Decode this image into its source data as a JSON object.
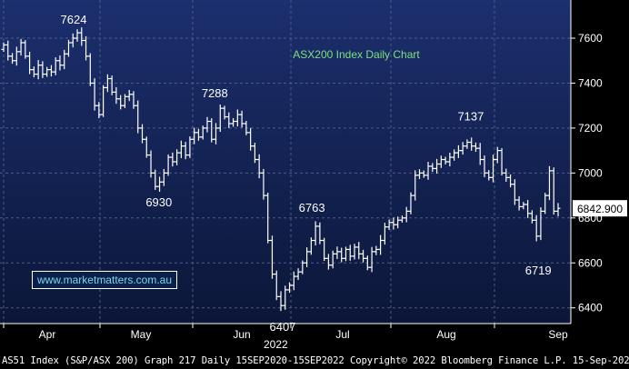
{
  "chart_data": {
    "type": "ohlc",
    "title": "ASX200 Index Daily Chart",
    "xlabel": "2022",
    "ylabel": "",
    "ylim": [
      6330,
      7770
    ],
    "yticks": [
      6400,
      6600,
      6800,
      7000,
      7200,
      7400,
      7600
    ],
    "month_labels": [
      "Apr",
      "May",
      "Jun",
      "Jul",
      "Aug",
      "Sep"
    ],
    "last_price_label": "6842.900",
    "last_price": 6842.9,
    "series": [
      {
        "values": [
          7570,
          7520,
          7500,
          7540,
          7580,
          7520,
          7460,
          7440,
          7480,
          7440,
          7460,
          7450,
          7500,
          7480,
          7530,
          7580,
          7600,
          7624,
          7590,
          7520,
          7400,
          7300,
          7260,
          7380,
          7420,
          7360,
          7330,
          7300,
          7340,
          7350,
          7300,
          7200,
          7150,
          7080,
          7000,
          6940,
          6960,
          7000,
          7070,
          7050,
          7090,
          7120,
          7080,
          7150,
          7180,
          7160,
          7200,
          7230,
          7150,
          7200,
          7288,
          7250,
          7220,
          7230,
          7260,
          7220,
          7180,
          7120,
          7060,
          7000,
          6900,
          6700,
          6550,
          6450,
          6410,
          6480,
          6500,
          6540,
          6560,
          6600,
          6650,
          6700,
          6763,
          6700,
          6620,
          6590,
          6640,
          6650,
          6620,
          6660,
          6630,
          6670,
          6640,
          6620,
          6580,
          6650,
          6660,
          6700,
          6760,
          6780,
          6770,
          6790,
          6800,
          6830,
          6900,
          6990,
          7000,
          6990,
          7030,
          7020,
          7040,
          7060,
          7050,
          7070,
          7090,
          7100,
          7120,
          7137,
          7120,
          7110,
          7060,
          7000,
          6980,
          7060,
          7100,
          7000,
          6980,
          6950,
          6880,
          6850,
          6860,
          6820,
          6790,
          6719,
          6830,
          6900,
          7010,
          6830,
          6842.9
        ]
      }
    ],
    "annotations": [
      {
        "text": "7624"
      },
      {
        "text": "7288"
      },
      {
        "text": "6930"
      },
      {
        "text": "6763"
      },
      {
        "text": "6407"
      },
      {
        "text": "7137"
      },
      {
        "text": "6719"
      }
    ]
  },
  "watermark": "www.marketmatters.com.au",
  "footer": "AS51 Index (S&P/ASX 200) Graph 217  Daily 15SEP2020-15SEP2022 Copyright© 2022 Bloomberg Finance L.P. 15-Sep-2022 16:39:17"
}
